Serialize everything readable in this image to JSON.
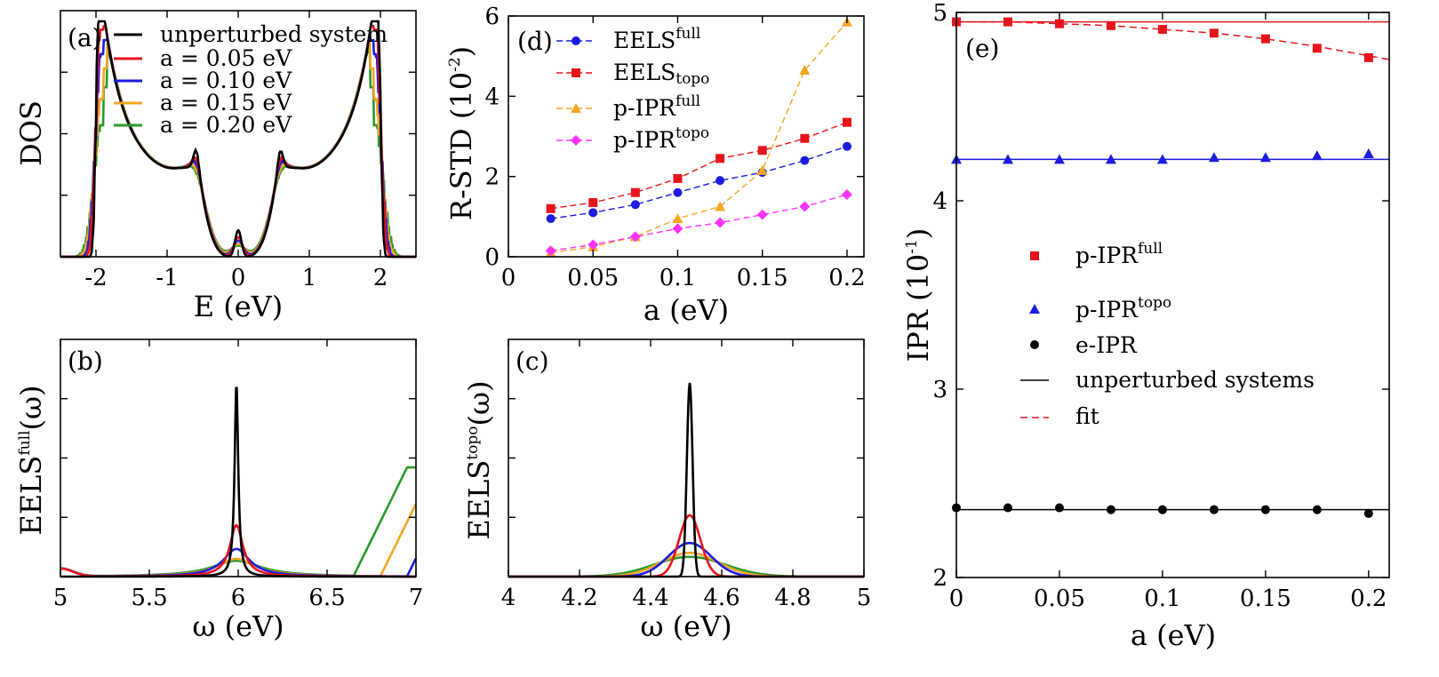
{
  "chart_data": [
    {
      "id": "a",
      "type": "line",
      "panel_label": "(a)",
      "xlabel": "E (eV)",
      "ylabel": "DOS",
      "xlim": [
        -2.5,
        2.5
      ],
      "ylim": [
        0,
        1.15
      ],
      "x_ticks": [
        -2,
        -1,
        0,
        1,
        2
      ],
      "x_tick_labels": [
        "-2",
        "-1",
        "0",
        "1",
        "2"
      ],
      "legend_position": "top-center",
      "series": [
        {
          "name": "unperturbed system",
          "color": "#000000",
          "peak_scale": 1.0,
          "broadening": 0.03
        },
        {
          "name": "a = 0.05 eV",
          "color": "#e8141c",
          "peak_scale": 0.98,
          "broadening": 0.05
        },
        {
          "name": "a = 0.10 eV",
          "color": "#1c1ce0",
          "peak_scale": 0.92,
          "broadening": 0.065
        },
        {
          "name": "a = 0.15 eV",
          "color": "#f5a623",
          "peak_scale": 0.8,
          "broadening": 0.085
        },
        {
          "name": "a = 0.20 eV",
          "color": "#2a9a2a",
          "peak_scale": 0.72,
          "broadening": 0.1
        }
      ],
      "features": {
        "outer_edge_eV": 2.0,
        "inner_peak_eV": 0.57,
        "central_peak_eV": 0.0
      }
    },
    {
      "id": "b",
      "type": "line",
      "panel_label": "(b)",
      "xlabel": "ω (eV)",
      "ylabel_main": "EELS",
      "ylabel_sup": "full",
      "ylabel_tail": "(ω)",
      "xlim": [
        5,
        7
      ],
      "ylim": [
        0,
        1
      ],
      "x_ticks": [
        5,
        5.5,
        6,
        6.5,
        7
      ],
      "x_tick_labels": [
        "5",
        "5.5",
        "6",
        "6.5",
        "7"
      ],
      "peak_center_eV": 5.99,
      "series": [
        {
          "name": "unperturbed system",
          "color": "#000000",
          "peak_height": 0.98,
          "peak_width": 0.012,
          "edge_onset": null
        },
        {
          "name": "a = 0.05 eV",
          "color": "#e8141c",
          "peak_height": 0.26,
          "peak_width": 0.045,
          "edge_onset": null
        },
        {
          "name": "a = 0.10 eV",
          "color": "#1c1ce0",
          "peak_height": 0.14,
          "peak_width": 0.09,
          "edge_onset": 6.95
        },
        {
          "name": "a = 0.15 eV",
          "color": "#f5a623",
          "peak_height": 0.09,
          "peak_width": 0.13,
          "edge_onset": 6.8
        },
        {
          "name": "a = 0.20 eV",
          "color": "#2a9a2a",
          "peak_height": 0.08,
          "peak_width": 0.17,
          "edge_onset": 6.65
        }
      ]
    },
    {
      "id": "c",
      "type": "line",
      "panel_label": "(c)",
      "xlabel": "ω (eV)",
      "ylabel_main": "EELS",
      "ylabel_sup": "topo",
      "ylabel_tail": "(ω)",
      "xlim": [
        4,
        5
      ],
      "ylim": [
        0,
        1
      ],
      "x_ticks": [
        4,
        4.2,
        4.4,
        4.6,
        4.8,
        5
      ],
      "x_tick_labels": [
        "4",
        "4.2",
        "4.4",
        "4.6",
        "4.8",
        "5"
      ],
      "peak_center_eV": 4.51,
      "series": [
        {
          "name": "unperturbed system",
          "color": "#000000",
          "peak_height": 0.98,
          "peak_width": 0.008
        },
        {
          "name": "a = 0.05 eV",
          "color": "#e8141c",
          "peak_height": 0.31,
          "peak_width": 0.03
        },
        {
          "name": "a = 0.10 eV",
          "color": "#1c1ce0",
          "peak_height": 0.17,
          "peak_width": 0.06
        },
        {
          "name": "a = 0.15 eV",
          "color": "#f5a623",
          "peak_height": 0.12,
          "peak_width": 0.08
        },
        {
          "name": "a = 0.20 eV",
          "color": "#2a9a2a",
          "peak_height": 0.1,
          "peak_width": 0.1
        }
      ]
    },
    {
      "id": "d",
      "type": "line",
      "panel_label": "(d)",
      "xlabel": "a (eV)",
      "ylabel_main": "R-STD (10",
      "ylabel_sup": "-2",
      "ylabel_tail": ")",
      "xlim": [
        0,
        0.21
      ],
      "ylim": [
        0,
        6
      ],
      "x_ticks": [
        0,
        0.05,
        0.1,
        0.15,
        0.2
      ],
      "x_tick_labels": [
        "0",
        "0.05",
        "0.1",
        "0.15",
        "0.2"
      ],
      "y_ticks": [
        0,
        2,
        4,
        6
      ],
      "y_tick_labels": [
        "0",
        "2",
        "4",
        "6"
      ],
      "x": [
        0.025,
        0.05,
        0.075,
        0.1,
        0.125,
        0.15,
        0.175,
        0.2
      ],
      "series": [
        {
          "name_main": "EELS",
          "name_sup": "full",
          "color": "#1c1ce0",
          "marker": "circle",
          "values": [
            0.95,
            1.1,
            1.3,
            1.6,
            1.9,
            2.1,
            2.4,
            2.75
          ]
        },
        {
          "name_main": "EELS",
          "name_sup": "topo",
          "color": "#e8141c",
          "marker": "square",
          "values": [
            1.2,
            1.35,
            1.6,
            1.95,
            2.45,
            2.65,
            2.95,
            3.35
          ]
        },
        {
          "name_main": "p-IPR",
          "name_sup": "full",
          "color": "#f5a623",
          "marker": "triangle",
          "values": [
            0.1,
            0.25,
            0.5,
            0.95,
            1.25,
            2.15,
            4.65,
            5.85
          ]
        },
        {
          "name_main": "p-IPR",
          "name_sup": "topo",
          "color": "#ff33ff",
          "marker": "diamond",
          "values": [
            0.15,
            0.3,
            0.5,
            0.7,
            0.85,
            1.05,
            1.25,
            1.55
          ]
        }
      ]
    },
    {
      "id": "e",
      "type": "scatter",
      "panel_label": "(e)",
      "xlabel": "a (eV)",
      "ylabel_main": "IPR (10",
      "ylabel_sup": "-1",
      "ylabel_tail": ")",
      "xlim": [
        0,
        0.21
      ],
      "ylim": [
        2,
        5
      ],
      "x_ticks": [
        0,
        0.05,
        0.1,
        0.15,
        0.2
      ],
      "x_tick_labels": [
        "0",
        "0.05",
        "0.1",
        "0.15",
        "0.2"
      ],
      "y_ticks": [
        2,
        3,
        4,
        5
      ],
      "y_tick_labels": [
        "2",
        "3",
        "4",
        "5"
      ],
      "x": [
        0,
        0.025,
        0.05,
        0.075,
        0.1,
        0.125,
        0.15,
        0.175,
        0.2
      ],
      "series": [
        {
          "name_main": "p-IPR",
          "name_sup": "full",
          "color": "#e8141c",
          "marker": "square",
          "values": [
            4.95,
            4.95,
            4.94,
            4.93,
            4.91,
            4.89,
            4.86,
            4.81,
            4.76
          ]
        },
        {
          "name_main": "p-IPR",
          "name_sup": "topo",
          "color": "#1c1ce0",
          "marker": "triangle",
          "values": [
            4.22,
            4.22,
            4.22,
            4.22,
            4.22,
            4.23,
            4.23,
            4.24,
            4.25
          ]
        },
        {
          "name_main": "e-IPR",
          "name_sup": "",
          "color": "#000000",
          "marker": "circle",
          "values": [
            2.37,
            2.37,
            2.37,
            2.36,
            2.36,
            2.36,
            2.36,
            2.36,
            2.34
          ]
        }
      ],
      "reference_lines": [
        {
          "y": 4.95,
          "color": "#e8141c"
        },
        {
          "y": 4.22,
          "color": "#1c1ce0"
        },
        {
          "y": 2.36,
          "color": "#000000"
        }
      ],
      "fit": {
        "color": "#e8141c",
        "x": [
          0,
          0.025,
          0.05,
          0.075,
          0.1,
          0.125,
          0.15,
          0.175,
          0.2,
          0.21
        ],
        "values": [
          4.95,
          4.95,
          4.94,
          4.93,
          4.91,
          4.89,
          4.86,
          4.82,
          4.77,
          4.75
        ]
      },
      "legend_extra": [
        {
          "label": "unperturbed systems",
          "style": "line",
          "color": "#000000"
        },
        {
          "label": "fit",
          "style": "dashed",
          "color": "#e8141c"
        }
      ]
    }
  ]
}
